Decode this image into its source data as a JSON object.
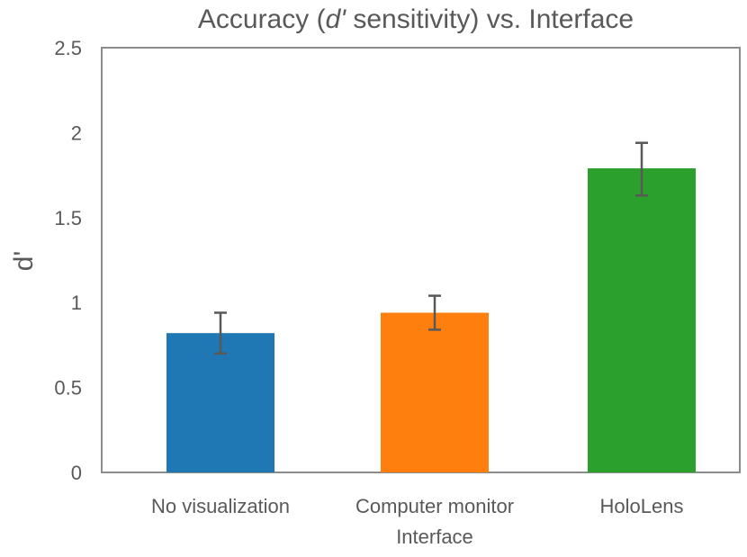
{
  "chart_data": {
    "type": "bar",
    "title_prefix": "Accuracy (",
    "title_italic": "d'",
    "title_suffix": " sensitivity) vs. Interface",
    "xlabel": "",
    "ylabel": "d'",
    "ylim": [
      0,
      2.5
    ],
    "yticks": [
      "0",
      "0.5",
      "1",
      "1.5",
      "2",
      "2.5"
    ],
    "ytick_values": [
      0,
      0.5,
      1,
      1.5,
      2,
      2.5
    ],
    "grid": false,
    "categories": [
      {
        "lines": [
          "No visualization"
        ]
      },
      {
        "lines": [
          "Computer monitor",
          "Interface"
        ]
      },
      {
        "lines": [
          "HoloLens"
        ]
      }
    ],
    "values": [
      0.82,
      0.94,
      1.79
    ],
    "error_low": [
      0.7,
      0.84,
      1.63
    ],
    "error_high": [
      0.94,
      1.04,
      1.94
    ],
    "colors": [
      "#1f77b4",
      "#ff7f0e",
      "#2ca02c"
    ],
    "error_color": "#595959",
    "frame_color": "#8c8c8c"
  }
}
